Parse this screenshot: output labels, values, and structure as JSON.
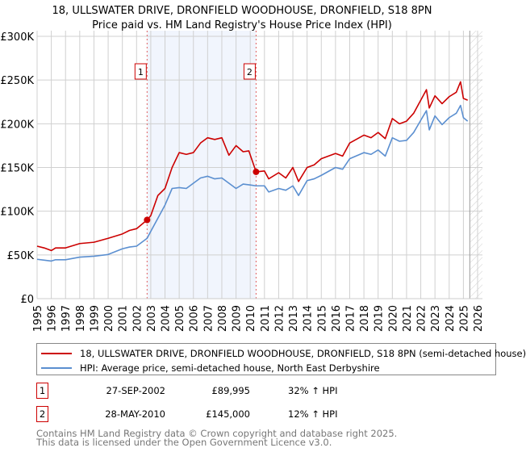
{
  "chart_data": {
    "type": "line",
    "title": "18, ULLSWATER DRIVE, DRONFIELD WOODHOUSE, DRONFIELD, S18 8PN",
    "subtitle": "Price paid vs. HM Land Registry's House Price Index (HPI)",
    "xlim": [
      1995,
      2026
    ],
    "ylim": [
      0,
      300000
    ],
    "x_ticks": [
      "1995",
      "1996",
      "1997",
      "1998",
      "1999",
      "2000",
      "2001",
      "2002",
      "2003",
      "2004",
      "2005",
      "2006",
      "2007",
      "2008",
      "2009",
      "2010",
      "2011",
      "2012",
      "2013",
      "2014",
      "2015",
      "2016",
      "2017",
      "2018",
      "2019",
      "2020",
      "2021",
      "2022",
      "2023",
      "2024",
      "2025",
      "2026"
    ],
    "y_ticks": [
      {
        "v": 0,
        "label": "£0"
      },
      {
        "v": 50000,
        "label": "£50K"
      },
      {
        "v": 100000,
        "label": "£100K"
      },
      {
        "v": 150000,
        "label": "£150K"
      },
      {
        "v": 200000,
        "label": "£200K"
      },
      {
        "v": 250000,
        "label": "£250K"
      },
      {
        "v": 300000,
        "label": "£300K"
      }
    ],
    "grid": true,
    "shaded_period": [
      2002.74,
      2010.41
    ],
    "forecast_hatch_from": 2025.5,
    "series": [
      {
        "name": "18, ULLSWATER DRIVE, DRONFIELD WOODHOUSE, DRONFIELD, S18 8PN (semi-detached house)",
        "color": "#cc0000",
        "x": [
          1995,
          1995.5,
          1996,
          1996.3,
          1997,
          1998,
          1999,
          2000,
          2001,
          2001.5,
          2002,
          2002.74,
          2003,
          2003.5,
          2004,
          2004.5,
          2005,
          2005.5,
          2006,
          2006.5,
          2007,
          2007.5,
          2008,
          2008.5,
          2009,
          2009.5,
          2009.9,
          2010.41,
          2011,
          2011.3,
          2012,
          2012.5,
          2013,
          2013.4,
          2014,
          2014.5,
          2015,
          2016,
          2016.5,
          2017,
          2018,
          2018.5,
          2019,
          2019.5,
          2020,
          2020.5,
          2021,
          2021.5,
          2022,
          2022.4,
          2022.6,
          2023,
          2023.5,
          2024,
          2024.5,
          2024.8,
          2025,
          2025.3
        ],
        "y": [
          60000,
          58000,
          55000,
          58000,
          58000,
          63000,
          64500,
          69000,
          74000,
          78000,
          80000,
          89995,
          95000,
          118000,
          126000,
          150000,
          167000,
          165000,
          167000,
          178000,
          184000,
          182000,
          184000,
          164000,
          175000,
          168000,
          169000,
          145000,
          146000,
          137000,
          144000,
          138000,
          150000,
          134000,
          150000,
          153000,
          160000,
          166000,
          163000,
          178000,
          187000,
          184000,
          190000,
          183000,
          206000,
          200000,
          203000,
          212000,
          227000,
          239000,
          218000,
          232000,
          223000,
          231000,
          236000,
          248000,
          229000,
          227000
        ]
      },
      {
        "name": "HPI: Average price, semi-detached house, North East Derbyshire",
        "color": "#5b8fd0",
        "x": [
          1995,
          1995.5,
          1996,
          1996.3,
          1997,
          1998,
          1999,
          2000,
          2001,
          2001.5,
          2002,
          2002.74,
          2003,
          2003.5,
          2004,
          2004.5,
          2005,
          2005.5,
          2006,
          2006.5,
          2007,
          2007.5,
          2008,
          2008.5,
          2009,
          2009.5,
          2010,
          2010.41,
          2011,
          2011.3,
          2012,
          2012.5,
          2013,
          2013.4,
          2014,
          2014.5,
          2015,
          2016,
          2016.5,
          2017,
          2018,
          2018.5,
          2019,
          2019.5,
          2020,
          2020.5,
          2021,
          2021.5,
          2022,
          2022.4,
          2022.6,
          2023,
          2023.5,
          2024,
          2024.5,
          2024.8,
          2025,
          2025.3
        ],
        "y": [
          45000,
          44000,
          43000,
          44500,
          44500,
          47500,
          48500,
          50500,
          57000,
          59000,
          60000,
          69000,
          77000,
          92000,
          107000,
          126000,
          127000,
          126000,
          132000,
          138000,
          140000,
          137000,
          138000,
          132000,
          126000,
          131000,
          130000,
          129000,
          129000,
          122000,
          126000,
          124000,
          129000,
          118000,
          135000,
          137000,
          141000,
          150000,
          148000,
          160000,
          167000,
          165000,
          170000,
          163000,
          184000,
          180000,
          181000,
          190000,
          204000,
          215000,
          193000,
          209000,
          199000,
          207000,
          212000,
          221000,
          207000,
          203000
        ]
      }
    ],
    "sales": [
      {
        "label": "1",
        "x": 2002.74,
        "y": 89995
      },
      {
        "label": "2",
        "x": 2010.41,
        "y": 145000
      }
    ]
  },
  "legend": {
    "red": "18, ULLSWATER DRIVE, DRONFIELD WOODHOUSE, DRONFIELD, S18 8PN (semi-detached house)",
    "blue": "HPI: Average price, semi-detached house, North East Derbyshire"
  },
  "transactions": [
    {
      "num": "1",
      "date": "27-SEP-2002",
      "price": "£89,995",
      "hpi": "32% ↑ HPI"
    },
    {
      "num": "2",
      "date": "28-MAY-2010",
      "price": "£145,000",
      "hpi": "12% ↑ HPI"
    }
  ],
  "footer": {
    "line1": "Contains HM Land Registry data © Crown copyright and database right 2025.",
    "line2": "This data is licensed under the Open Government Licence v3.0."
  }
}
